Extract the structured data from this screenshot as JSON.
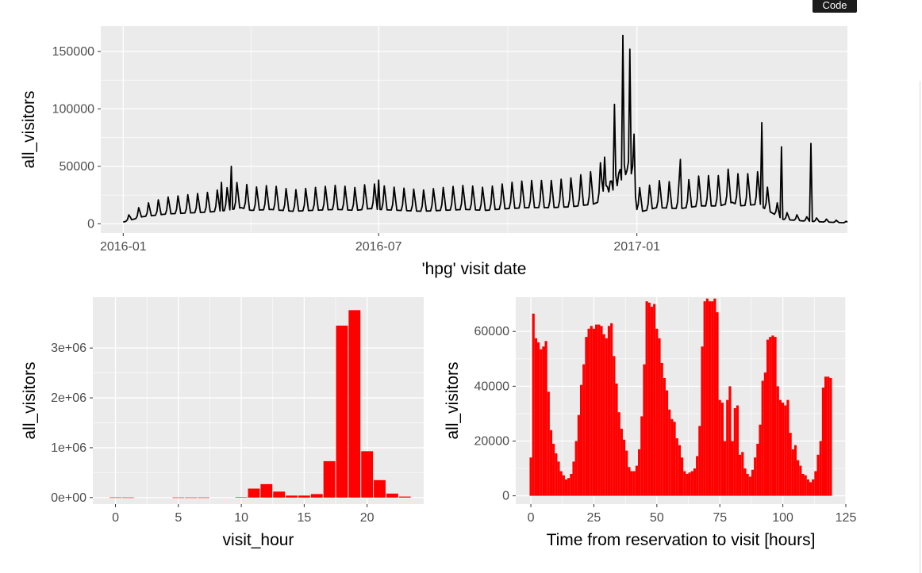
{
  "toolbar": {
    "code_label": "Code"
  },
  "colors": {
    "panel_bg": "#ebebeb",
    "grid": "#ffffff",
    "line": "#000000",
    "bar": "#ff0000",
    "text": "#4d4d4d"
  },
  "chart_data": [
    {
      "type": "line",
      "title": "",
      "xlabel": "'hpg' visit date",
      "ylabel": "all_visitors",
      "x_tick_labels": [
        "2016-01",
        "2016-07",
        "2017-01"
      ],
      "x_ticks": [
        "2016-01-01",
        "2016-07-01",
        "2017-01-01"
      ],
      "xlim": [
        "2015-12-16",
        "2017-05-31"
      ],
      "y_ticks": [
        0,
        50000,
        100000,
        150000
      ],
      "y_tick_labels": [
        "0",
        "50000",
        "100000",
        "150000"
      ],
      "ylim": [
        -8000,
        172000
      ],
      "grid": true,
      "series": [
        {
          "x": [
            "2016-01-01",
            "2016-01-15",
            "2016-02-01",
            "2016-02-15",
            "2016-03-01",
            "2016-03-15",
            "2016-03-25",
            "2016-04-01",
            "2016-04-15",
            "2016-05-01",
            "2016-05-15",
            "2016-06-01",
            "2016-06-15",
            "2016-06-25",
            "2016-07-01",
            "2016-07-15",
            "2016-08-01",
            "2016-08-15",
            "2016-09-01",
            "2016-09-15",
            "2016-10-01",
            "2016-10-15",
            "2016-11-01",
            "2016-11-15",
            "2016-12-01",
            "2016-12-10",
            "2016-12-15",
            "2016-12-20",
            "2016-12-23",
            "2016-12-26",
            "2016-12-29",
            "2017-01-01",
            "2017-01-05",
            "2017-01-15",
            "2017-02-01",
            "2017-02-15",
            "2017-03-01",
            "2017-03-10",
            "2017-03-15",
            "2017-03-31",
            "2017-04-01",
            "2017-04-15",
            "2017-05-01",
            "2017-05-15",
            "2017-05-31"
          ],
          "y": [
            2000,
            8000,
            11000,
            12000,
            13000,
            15000,
            18000,
            15000,
            16000,
            14000,
            15000,
            16000,
            15000,
            17000,
            16000,
            15000,
            14000,
            15000,
            16000,
            15000,
            17000,
            18000,
            18000,
            19000,
            22000,
            28000,
            34000,
            40000,
            43000,
            45000,
            42000,
            16000,
            14000,
            18000,
            17000,
            20000,
            20000,
            24000,
            20000,
            22000,
            18000,
            5000,
            3000,
            2000,
            1000
          ],
          "spikes": [
            [
              "2016-03-18",
              50000
            ],
            [
              "2016-03-11",
              36000
            ],
            [
              "2016-07-01",
              38000
            ],
            [
              "2016-12-09",
              58000
            ],
            [
              "2016-12-16",
              104000
            ],
            [
              "2016-12-22",
              164000
            ],
            [
              "2016-12-27",
              152000
            ],
            [
              "2016-12-30",
              78000
            ],
            [
              "2017-02-01",
              56000
            ],
            [
              "2017-03-31",
              88000
            ],
            [
              "2017-04-14",
              67000
            ],
            [
              "2017-05-05",
              70000
            ]
          ]
        }
      ]
    },
    {
      "type": "bar",
      "title": "",
      "xlabel": "visit_hour",
      "ylabel": "all_visitors",
      "x_ticks": [
        0,
        5,
        10,
        15,
        20
      ],
      "x_tick_labels": [
        "0",
        "5",
        "10",
        "15",
        "20"
      ],
      "xlim": [
        -1.8,
        24.5
      ],
      "y_ticks": [
        0,
        1000000,
        2000000,
        3000000
      ],
      "y_tick_labels": [
        "0e+00",
        "1e+06",
        "2e+06",
        "3e+06"
      ],
      "ylim": [
        -130000,
        4020000
      ],
      "grid": true,
      "categories": [
        0,
        1,
        2,
        3,
        4,
        5,
        6,
        7,
        8,
        9,
        10,
        11,
        12,
        13,
        14,
        15,
        16,
        17,
        18,
        19,
        20,
        21,
        22,
        23
      ],
      "values": [
        4000,
        3000,
        0,
        0,
        0,
        3000,
        3000,
        3000,
        0,
        0,
        8000,
        180000,
        270000,
        120000,
        40000,
        40000,
        70000,
        730000,
        3450000,
        3760000,
        930000,
        350000,
        80000,
        20000
      ]
    },
    {
      "type": "bar",
      "title": "",
      "xlabel": "Time from reservation to visit [hours]",
      "ylabel": "all_visitors",
      "x_ticks": [
        0,
        25,
        50,
        75,
        100,
        125
      ],
      "x_tick_labels": [
        "0",
        "25",
        "50",
        "75",
        "100",
        "125"
      ],
      "xlim": [
        -6,
        125
      ],
      "y_ticks": [
        0,
        20000,
        40000,
        60000
      ],
      "y_tick_labels": [
        "0",
        "20000",
        "40000",
        "60000"
      ],
      "ylim": [
        -3000,
        72500
      ],
      "grid": true,
      "categories": [
        0,
        1,
        2,
        3,
        4,
        5,
        6,
        7,
        8,
        9,
        10,
        11,
        12,
        13,
        14,
        15,
        16,
        17,
        18,
        19,
        20,
        21,
        22,
        23,
        24,
        25,
        26,
        27,
        28,
        29,
        30,
        31,
        32,
        33,
        34,
        35,
        36,
        37,
        38,
        39,
        40,
        41,
        42,
        43,
        44,
        45,
        46,
        47,
        48,
        49,
        50,
        51,
        52,
        53,
        54,
        55,
        56,
        57,
        58,
        59,
        60,
        61,
        62,
        63,
        64,
        65,
        66,
        67,
        68,
        69,
        70,
        71,
        72,
        73,
        74,
        75,
        76,
        77,
        78,
        79,
        80,
        81,
        82,
        83,
        84,
        85,
        86,
        87,
        88,
        89,
        90,
        91,
        92,
        93,
        94,
        95,
        96,
        97,
        98,
        99,
        100,
        101,
        102,
        103,
        104,
        105,
        106,
        107,
        108,
        109,
        110,
        111,
        112,
        113,
        114,
        115,
        116,
        117,
        118,
        119
      ],
      "values": [
        14000,
        66500,
        57500,
        56000,
        53500,
        54500,
        56500,
        38000,
        24000,
        19000,
        15500,
        12500,
        9000,
        7500,
        6000,
        6500,
        8000,
        12500,
        20000,
        29500,
        40500,
        48000,
        58000,
        61000,
        62000,
        61000,
        62500,
        62500,
        62000,
        59000,
        57500,
        62000,
        63000,
        51000,
        41000,
        30500,
        24500,
        20500,
        16500,
        10500,
        9000,
        9000,
        11000,
        17000,
        29000,
        48000,
        71000,
        70500,
        69000,
        70000,
        61000,
        57500,
        48500,
        43000,
        38500,
        31500,
        28000,
        27000,
        21000,
        18500,
        14000,
        9000,
        8000,
        8500,
        9000,
        10000,
        14500,
        25500,
        54500,
        71000,
        72000,
        71000,
        71000,
        72000,
        67000,
        35000,
        34000,
        20000,
        35000,
        40000,
        20000,
        32000,
        33000,
        15000,
        16000,
        10000,
        8000,
        7000,
        9500,
        14000,
        19000,
        26000,
        42000,
        45000,
        57000,
        58000,
        58500,
        58000,
        40000,
        35000,
        34000,
        33000,
        35000,
        23000,
        17000,
        18500,
        13000,
        11000,
        8000,
        7500,
        6000,
        5000,
        6000,
        9000,
        15000,
        20000,
        39500,
        43500,
        43500,
        43000
      ]
    }
  ]
}
